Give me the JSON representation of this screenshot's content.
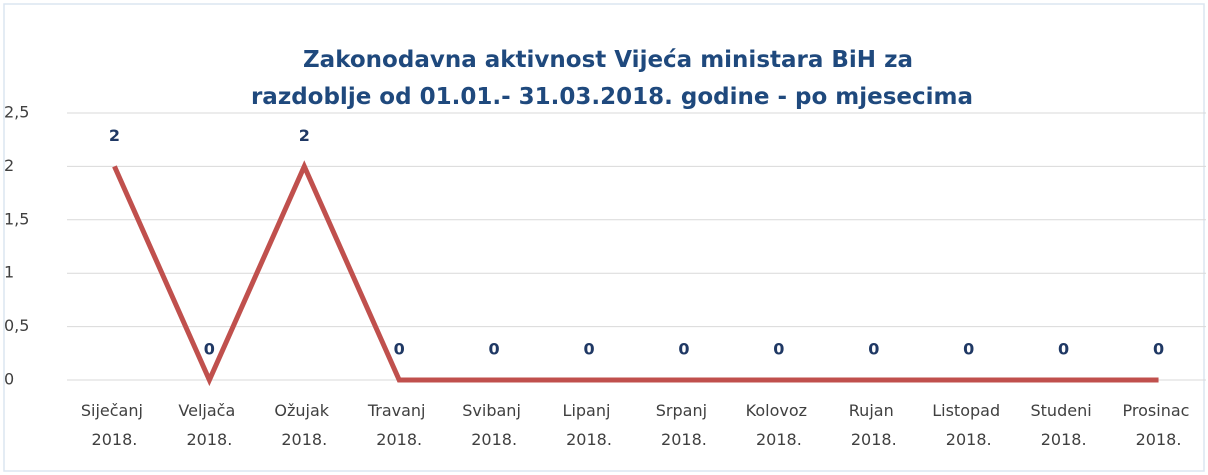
{
  "chart_data": {
    "type": "line",
    "title": "Zakonodavna aktivnost Vijeća ministara BiH za razdoblje od 01.01.- 31.03.2018. godine - po mjesecima",
    "categories": [
      "Siječanj 2018.",
      "Veljača 2018.",
      "Ožujak 2018.",
      "Travanj 2018.",
      "Svibanj 2018.",
      "Lipanj 2018.",
      "Srpanj 2018.",
      "Kolovoz 2018.",
      "Rujan 2018.",
      "Listopad 2018.",
      "Studeni 2018.",
      "Prosinac 2018."
    ],
    "values": [
      2,
      0,
      2,
      0,
      0,
      0,
      0,
      0,
      0,
      0,
      0,
      0
    ],
    "color": "#c0504d",
    "ylim": [
      0,
      2.5
    ],
    "yticks": [
      0,
      {
        "value": 0.5,
        "label": "0,5"
      },
      1,
      {
        "value": 1.5,
        "label": "1,5"
      },
      2,
      {
        "value": 2.5,
        "label": "2,5"
      }
    ],
    "grid": true
  }
}
